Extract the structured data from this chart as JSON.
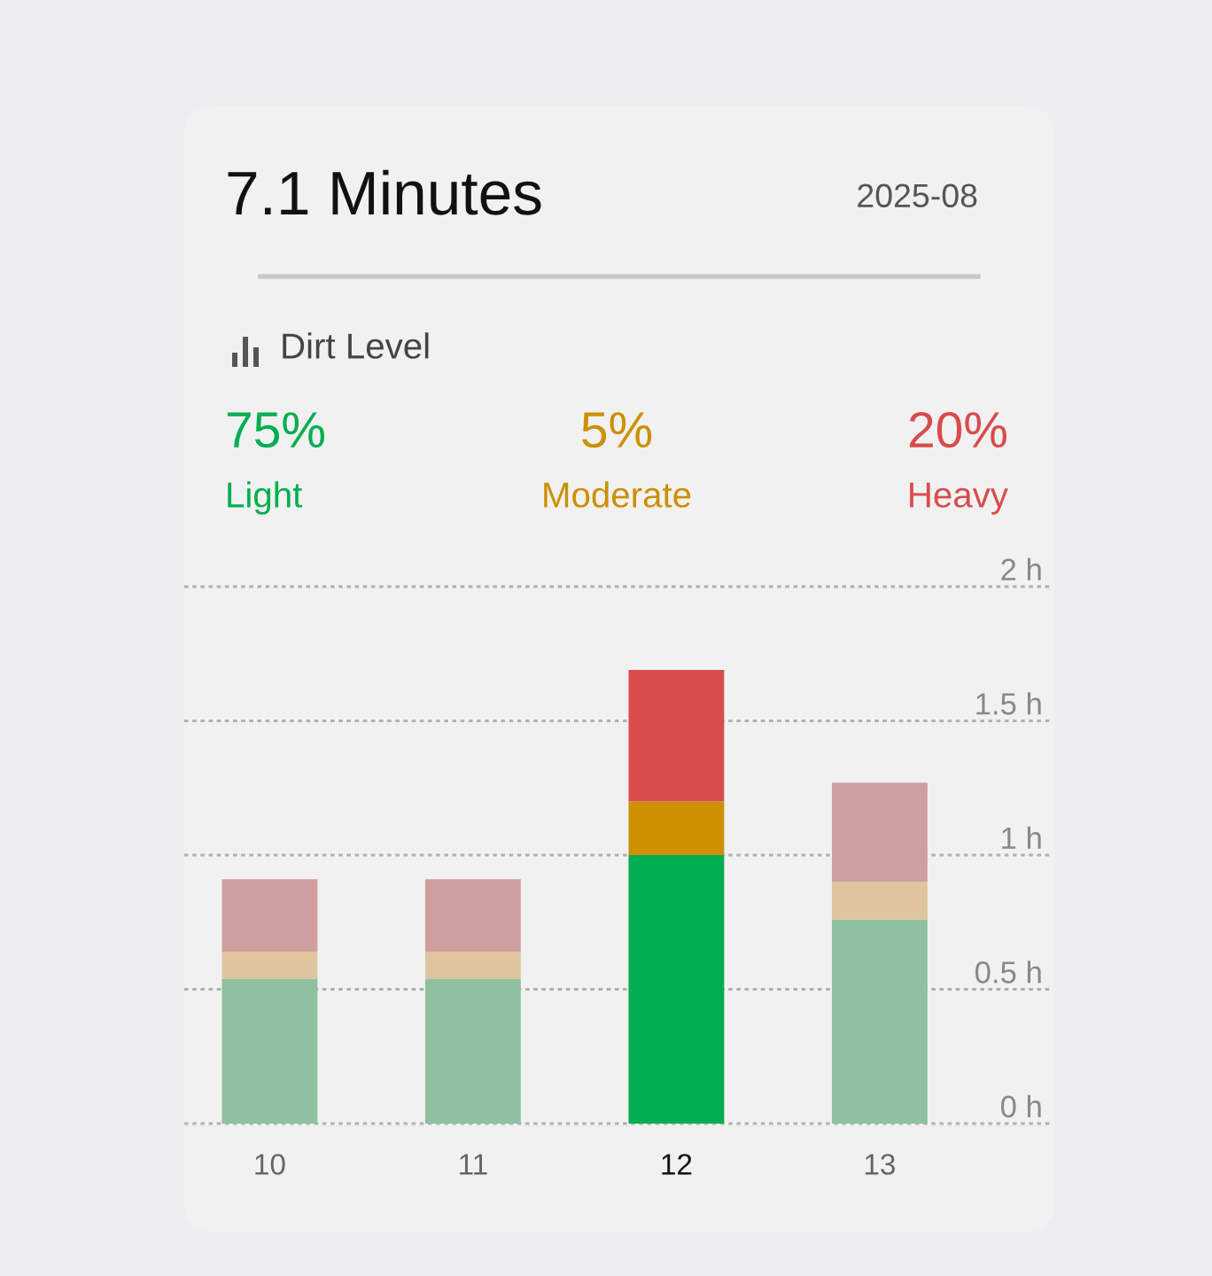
{
  "chart_data": {
    "type": "bar",
    "title": "7.1 Minutes",
    "subtitle": "2025-08",
    "legend_title": "Dirt Level",
    "annotations": [
      "75%",
      "5%",
      "20%"
    ],
    "categories": [
      "10",
      "11",
      "12",
      "13"
    ],
    "series": [
      {
        "name": "Light",
        "color": "#00ad50",
        "colors": [
          "#8fc09f",
          "#8fc09f",
          "#00ad50",
          "#8fc09f"
        ],
        "values": [
          0.54,
          0.54,
          1.0,
          0.76
        ]
      },
      {
        "name": "Moderate",
        "color": "#cc9000",
        "colors": [
          "#dfc59e",
          "#dfc59e",
          "#cc9000",
          "#dfc59e"
        ],
        "values": [
          0.1,
          0.1,
          0.2,
          0.14
        ]
      },
      {
        "name": "Heavy",
        "color": "#d94c4c",
        "colors": [
          "#cf9e9e",
          "#cf9e9e",
          "#d94c4c",
          "#cf9e9e"
        ],
        "values": [
          0.27,
          0.27,
          0.49,
          0.37
        ]
      }
    ],
    "stacked": true,
    "ylim": [
      0,
      2
    ],
    "yticks": [
      {
        "value": 0,
        "label": "0 h"
      },
      {
        "value": 0.5,
        "label": "0.5 h"
      },
      {
        "value": 1,
        "label": "1 h"
      },
      {
        "value": 1.5,
        "label": "1.5 h"
      },
      {
        "value": 2,
        "label": "2 h"
      }
    ],
    "grid": "y",
    "legend": "top"
  }
}
